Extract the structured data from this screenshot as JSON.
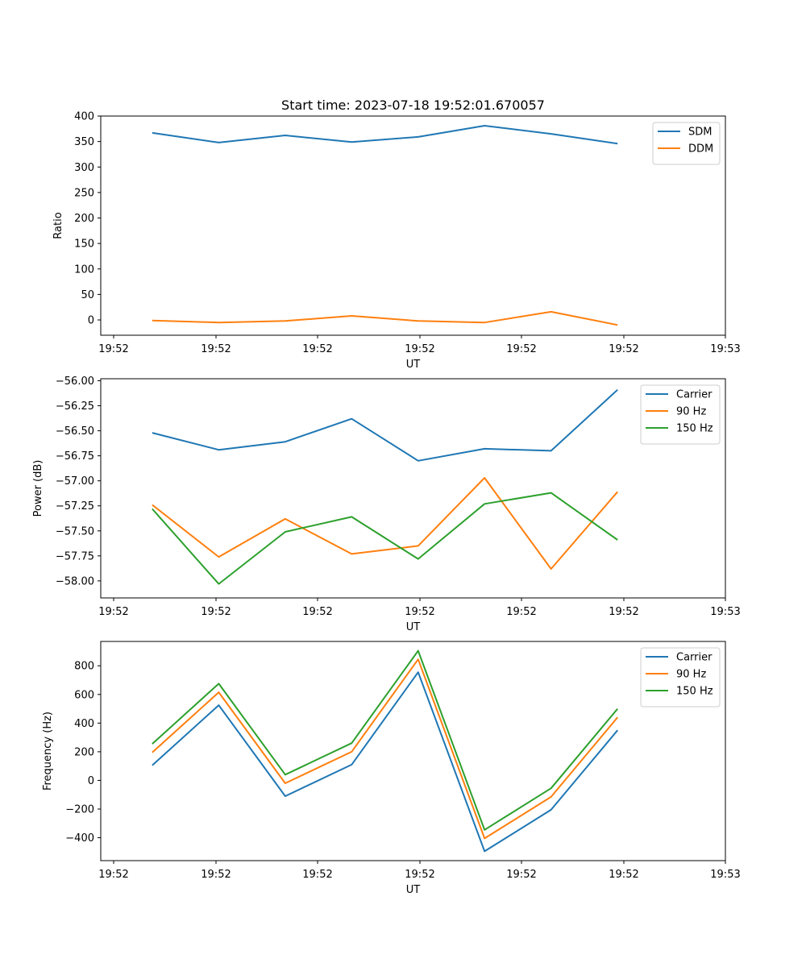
{
  "figure_title": "Start time: 2023-07-18 19:52:01.670057",
  "chart_data": [
    {
      "type": "line",
      "title": "Start time: 2023-07-18 19:52:01.670057",
      "xlabel": "UT",
      "ylabel": "Ratio",
      "xticklabels": [
        "19:52",
        "19:52",
        "19:52",
        "19:52",
        "19:52",
        "19:52",
        "19:53"
      ],
      "yticks": [
        0,
        50,
        100,
        150,
        200,
        250,
        300,
        350,
        400
      ],
      "yticklabels": [
        "0",
        "50",
        "100",
        "150",
        "200",
        "250",
        "300",
        "350",
        "400"
      ],
      "ylim": [
        -30,
        400
      ],
      "x": [
        0.0825,
        0.1889,
        0.2953,
        0.4017,
        0.5081,
        0.6145,
        0.7209,
        0.8273
      ],
      "legend_loc": "upper right",
      "series": [
        {
          "name": "SDM",
          "color": "#1f77b4",
          "values": [
            367,
            348,
            362,
            349,
            359,
            381,
            365,
            346
          ]
        },
        {
          "name": "DDM",
          "color": "#ff7f0e",
          "values": [
            -1,
            -5,
            -2,
            8,
            -2,
            -5,
            16,
            -10
          ]
        }
      ]
    },
    {
      "type": "line",
      "title": "",
      "xlabel": "UT",
      "ylabel": "Power (dB)",
      "xticklabels": [
        "19:52",
        "19:52",
        "19:52",
        "19:52",
        "19:52",
        "19:52",
        "19:53"
      ],
      "yticks": [
        -58.0,
        -57.75,
        -57.5,
        -57.25,
        -57.0,
        -56.75,
        -56.5,
        -56.25,
        -56.0
      ],
      "yticklabels": [
        "−58.00",
        "−57.75",
        "−57.50",
        "−57.25",
        "−57.00",
        "−56.75",
        "−56.50",
        "−56.25",
        "−56.00"
      ],
      "ylim": [
        -58.17,
        -55.98
      ],
      "x": [
        0.0825,
        0.1889,
        0.2953,
        0.4017,
        0.5081,
        0.6145,
        0.7209,
        0.8273
      ],
      "legend_loc": "upper right",
      "series": [
        {
          "name": "Carrier",
          "color": "#1f77b4",
          "values": [
            -56.52,
            -56.69,
            -56.61,
            -56.38,
            -56.8,
            -56.68,
            -56.7,
            -56.09
          ]
        },
        {
          "name": "90 Hz",
          "color": "#ff7f0e",
          "values": [
            -57.24,
            -57.76,
            -57.38,
            -57.73,
            -57.65,
            -56.97,
            -57.88,
            -57.11
          ]
        },
        {
          "name": "150 Hz",
          "color": "#2ca02c",
          "values": [
            -57.28,
            -58.03,
            -57.51,
            -57.36,
            -57.78,
            -57.23,
            -57.12,
            -57.59
          ]
        }
      ]
    },
    {
      "type": "line",
      "title": "",
      "xlabel": "UT",
      "ylabel": "Frequency (Hz)",
      "xticklabels": [
        "19:52",
        "19:52",
        "19:52",
        "19:52",
        "19:52",
        "19:52",
        "19:53"
      ],
      "yticks": [
        -400,
        -200,
        0,
        200,
        400,
        600,
        800
      ],
      "yticklabels": [
        "−400",
        "−200",
        "0",
        "200",
        "400",
        "600",
        "800"
      ],
      "ylim": [
        -560,
        970
      ],
      "x": [
        0.0825,
        0.1889,
        0.2953,
        0.4017,
        0.5081,
        0.6145,
        0.7209,
        0.8273
      ],
      "legend_loc": "upper right",
      "series": [
        {
          "name": "Carrier",
          "color": "#1f77b4",
          "values": [
            105,
            525,
            -110,
            110,
            755,
            -495,
            -205,
            350
          ]
        },
        {
          "name": "90 Hz",
          "color": "#ff7f0e",
          "values": [
            195,
            615,
            -20,
            200,
            845,
            -405,
            -115,
            440
          ]
        },
        {
          "name": "150 Hz",
          "color": "#2ca02c",
          "values": [
            255,
            675,
            40,
            260,
            905,
            -345,
            -55,
            500
          ]
        }
      ]
    }
  ]
}
